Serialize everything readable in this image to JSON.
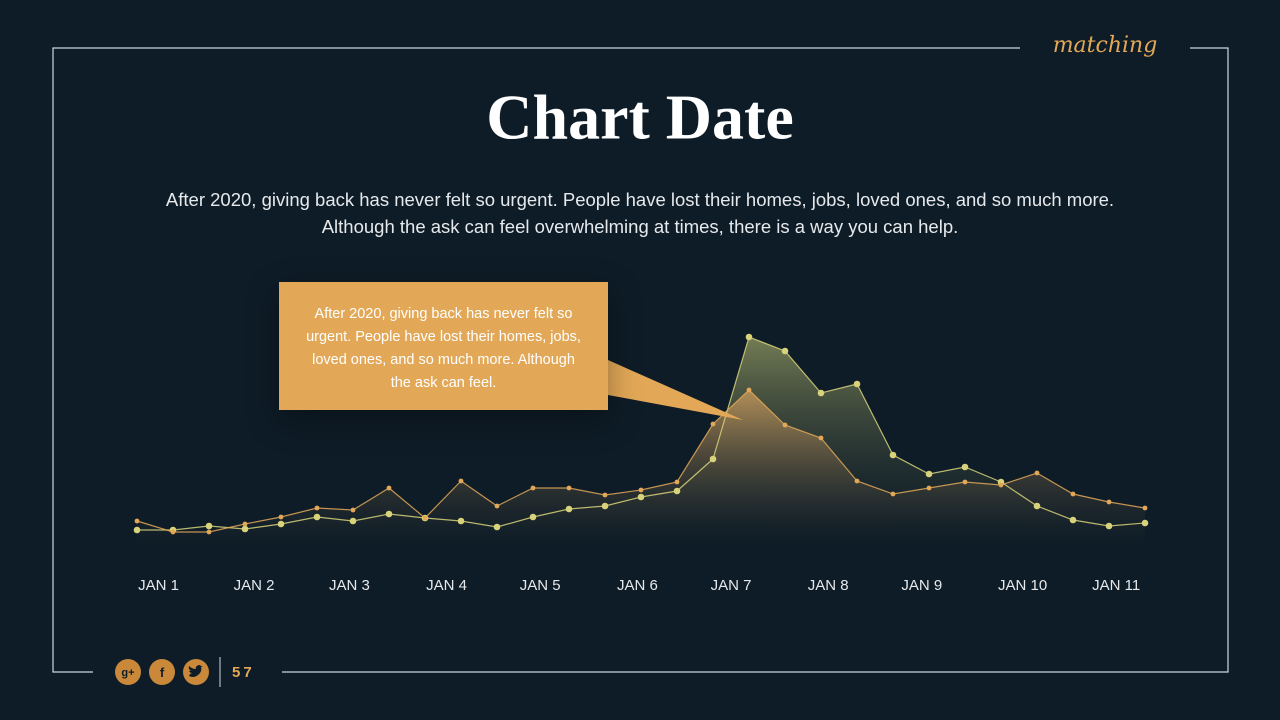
{
  "brand": "matching",
  "page_number": "57",
  "callout": "After 2020, giving back has never felt so urgent. People have lost their homes, jobs, loved ones, and so much more. Although the ask can feel.",
  "chart_data": {
    "type": "area",
    "title": "Chart Date",
    "subtitle": "After 2020, giving back has never felt so urgent. People have lost their homes, jobs, loved ones, and so much more. Although the ask can feel overwhelming at times, there is a way you can help.",
    "x": [
      0,
      1,
      2,
      3,
      4,
      5,
      6,
      7,
      8,
      9,
      10,
      11,
      12,
      13,
      14,
      15,
      16,
      17,
      18,
      19,
      20,
      21,
      22,
      23,
      24,
      25,
      26,
      27,
      28
    ],
    "xlim": [
      0,
      28
    ],
    "xticks": [
      {
        "value": 0.6,
        "label": "JAN 1"
      },
      {
        "value": 3.25,
        "label": "JAN 2"
      },
      {
        "value": 5.9,
        "label": "JAN 3"
      },
      {
        "value": 8.6,
        "label": "JAN 4"
      },
      {
        "value": 11.2,
        "label": "JAN 5"
      },
      {
        "value": 13.9,
        "label": "JAN 6"
      },
      {
        "value": 16.5,
        "label": "JAN 7"
      },
      {
        "value": 19.2,
        "label": "JAN 8"
      },
      {
        "value": 21.8,
        "label": "JAN 9"
      },
      {
        "value": 24.6,
        "label": "JAN 10"
      },
      {
        "value": 27.2,
        "label": "JAN 11"
      }
    ],
    "ylim": [
      0,
      110
    ],
    "series": [
      {
        "color": "#d8d37a",
        "values": [
          7.5,
          7.5,
          9.5,
          8,
          10.5,
          14,
          12,
          15.5,
          13.5,
          12,
          9,
          14,
          18,
          19.5,
          24,
          27,
          43,
          104,
          97,
          76,
          80.5,
          45,
          35.5,
          39,
          31.5,
          19.5,
          12.5,
          9.5,
          11
        ]
      },
      {
        "color": "#e3a857",
        "values": [
          12,
          6.5,
          6.5,
          10.5,
          14,
          18.5,
          17.5,
          28.5,
          13.5,
          32,
          19.5,
          28.5,
          28.5,
          25,
          27.5,
          31.5,
          60.5,
          77.5,
          60,
          53.5,
          32,
          25.5,
          28.5,
          31.5,
          30,
          36,
          25.5,
          21.5,
          18.5
        ]
      }
    ]
  }
}
